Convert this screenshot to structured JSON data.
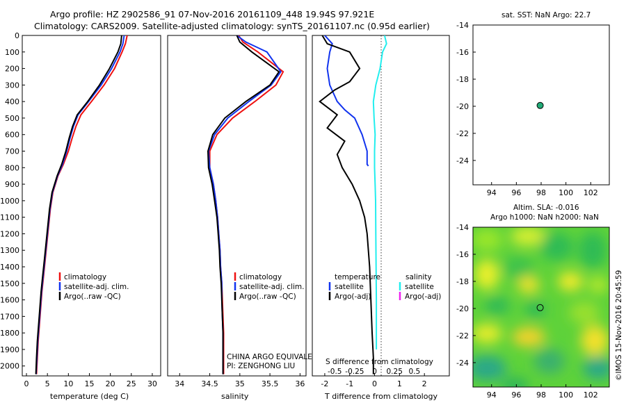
{
  "header": {
    "line1": "Argo profile: HZ 2902586_91 07-Nov-2016 20161109_448 19.94S 97.921E",
    "line2": "Climatology: CARS2009. Satellite-adjusted climatology: synTS_20161107.nc (0.95d earlier)"
  },
  "colors": {
    "climatology": "#ee1111",
    "satellite": "#1133ee",
    "argo": "#000000",
    "salinity_satellite": "#22eeee",
    "salinity_argo": "#ee22ee",
    "float_marker": "#22aa77"
  },
  "chart_data": [
    {
      "type": "line",
      "panel": "temperature",
      "xlabel": "temperature (deg C)",
      "ylabel": "",
      "xlim": [
        -1,
        32
      ],
      "ylim": [
        2060,
        0
      ],
      "xticks": [
        0,
        5,
        10,
        15,
        20,
        25,
        30
      ],
      "yticks": [
        0,
        100,
        200,
        300,
        400,
        500,
        600,
        700,
        800,
        900,
        1000,
        1100,
        1200,
        1300,
        1400,
        1500,
        1600,
        1700,
        1800,
        1900,
        2000
      ],
      "legend": [
        "climatology",
        "satellite-adj. clim.",
        "Argo(..raw -QC)"
      ],
      "series": [
        {
          "name": "climatology",
          "color": "#ee1111",
          "x": [
            24.0,
            23.6,
            22.8,
            21.0,
            18.5,
            15.5,
            13.0,
            11.8,
            10.9,
            10.0,
            8.8,
            7.5,
            6.3,
            5.7,
            5.3,
            4.9,
            4.5,
            4.1,
            3.7,
            3.4,
            3.1,
            2.8,
            2.6,
            2.4
          ],
          "y": [
            0,
            50,
            100,
            200,
            300,
            400,
            480,
            550,
            620,
            700,
            780,
            850,
            950,
            1050,
            1150,
            1250,
            1350,
            1450,
            1550,
            1650,
            1750,
            1850,
            1950,
            2050
          ]
        },
        {
          "name": "satellite-adj. clim.",
          "color": "#1133ee",
          "x": [
            23.3,
            23.0,
            22.3,
            20.3,
            17.8,
            14.8,
            12.3,
            11.2,
            10.4,
            9.6,
            8.6,
            7.4,
            6.2,
            5.6,
            5.2,
            4.8,
            4.4,
            4.0,
            3.6,
            3.3,
            3.0,
            2.7,
            2.5,
            2.3
          ],
          "y": [
            0,
            50,
            100,
            200,
            300,
            400,
            480,
            550,
            620,
            700,
            780,
            850,
            950,
            1050,
            1150,
            1250,
            1350,
            1450,
            1550,
            1650,
            1750,
            1850,
            1950,
            2050
          ]
        },
        {
          "name": "Argo(..raw -QC)",
          "color": "#000000",
          "x": [
            22.7,
            22.5,
            21.8,
            19.8,
            17.4,
            14.6,
            12.1,
            11.0,
            10.2,
            9.4,
            8.4,
            7.3,
            6.1,
            5.5,
            5.1,
            4.7,
            4.3,
            3.9,
            3.5,
            3.2,
            2.9,
            2.6,
            2.4,
            2.25
          ],
          "y": [
            0,
            50,
            100,
            200,
            300,
            400,
            480,
            550,
            620,
            700,
            780,
            850,
            950,
            1050,
            1150,
            1250,
            1350,
            1450,
            1550,
            1650,
            1750,
            1850,
            1950,
            2050
          ]
        }
      ]
    },
    {
      "type": "line",
      "panel": "salinity",
      "xlabel": "salinity",
      "xlim": [
        33.8,
        36.1
      ],
      "ylim": [
        2060,
        0
      ],
      "xticks": [
        34,
        34.5,
        35,
        35.5,
        36
      ],
      "legend": [
        "climatology",
        "satellite-adj. clim.",
        "Argo(..raw -QC)"
      ],
      "annotation": [
        "CHINA ARGO EQUIVALENT",
        "PI: ZENGHONG LIU"
      ],
      "series": [
        {
          "name": "climatology",
          "color": "#ee1111",
          "x": [
            34.98,
            35.05,
            35.3,
            35.72,
            35.6,
            35.25,
            34.88,
            34.62,
            34.5,
            34.5,
            34.56,
            34.6,
            34.63,
            34.65,
            34.67,
            34.68,
            34.7,
            34.71,
            34.72,
            34.73,
            34.73,
            34.73
          ],
          "y": [
            0,
            40,
            100,
            220,
            300,
            400,
            500,
            600,
            700,
            800,
            900,
            1000,
            1100,
            1200,
            1300,
            1400,
            1500,
            1600,
            1700,
            1800,
            1900,
            2050
          ]
        },
        {
          "name": "satellite-adj. clim.",
          "color": "#1133ee",
          "x": [
            34.95,
            35.1,
            35.45,
            35.68,
            35.52,
            35.15,
            34.8,
            34.58,
            34.48,
            34.5,
            34.56,
            34.6,
            34.63,
            34.65,
            34.67,
            34.68,
            34.7,
            34.7,
            34.71,
            34.72,
            34.72,
            34.72
          ],
          "y": [
            0,
            40,
            100,
            220,
            300,
            400,
            500,
            600,
            700,
            800,
            900,
            1000,
            1100,
            1200,
            1300,
            1400,
            1500,
            1600,
            1700,
            1800,
            1900,
            2050
          ]
        },
        {
          "name": "Argo(..raw -QC)",
          "color": "#000000",
          "x": [
            34.95,
            35.0,
            35.2,
            35.65,
            35.5,
            35.1,
            34.75,
            34.55,
            34.47,
            34.48,
            34.54,
            34.58,
            34.62,
            34.64,
            34.66,
            34.67,
            34.69,
            34.7,
            34.71,
            34.72,
            34.72,
            34.72
          ],
          "y": [
            0,
            40,
            100,
            220,
            300,
            400,
            500,
            600,
            700,
            800,
            900,
            1000,
            1100,
            1200,
            1300,
            1400,
            1500,
            1600,
            1700,
            1800,
            1900,
            2050
          ]
        }
      ]
    },
    {
      "type": "line",
      "panel": "difference",
      "xlabel": "T difference from climatology",
      "xlabel_top": "S difference from climatology",
      "xlim": [
        -2.5,
        3.0
      ],
      "ylim": [
        2060,
        0
      ],
      "xticks": [
        -2,
        -1,
        0,
        1,
        2
      ],
      "xticks_salinity": [
        "-0.5",
        "-0.25",
        "0",
        "0.25",
        "0.5"
      ],
      "legend": {
        "temperature_header": "temperature",
        "salinity_header": "salinity",
        "items": [
          "satellite",
          "Argo(-adj)",
          "satellite",
          "Argo(-adj)"
        ]
      },
      "series": [
        {
          "name": "temperature satellite",
          "color": "#1133ee",
          "x": [
            -2.0,
            -1.7,
            -1.8,
            -1.9,
            -1.8,
            -1.5,
            -1.2,
            -0.8,
            -0.5,
            -0.3,
            -0.3,
            -0.3,
            -0.25
          ],
          "y": [
            0,
            50,
            100,
            200,
            300,
            400,
            450,
            500,
            600,
            700,
            760,
            780,
            790
          ]
        },
        {
          "name": "temperature Argo(-adj)",
          "color": "#000000",
          "x": [
            -2.1,
            -1.9,
            -1.0,
            -0.6,
            -1.0,
            -1.6,
            -2.2,
            -1.5,
            -1.9,
            -1.2,
            -1.5,
            -1.3,
            -0.9,
            -0.6,
            -0.4,
            -0.3,
            -0.25,
            -0.2,
            -0.15,
            -0.1,
            -0.05,
            -0.05
          ],
          "y": [
            0,
            50,
            100,
            200,
            280,
            330,
            400,
            480,
            560,
            640,
            720,
            800,
            900,
            1000,
            1100,
            1200,
            1300,
            1400,
            1600,
            1800,
            1950,
            2050
          ]
        },
        {
          "name": "salinity satellite",
          "color": "#22eeee",
          "x": [
            0.4,
            0.48,
            0.32,
            0.22,
            0.05,
            -0.05,
            -0.02,
            0.02,
            0.0,
            0.0,
            0.02,
            0.04,
            0.05,
            0.06,
            0.07,
            0.07,
            0.07
          ],
          "y": [
            0,
            50,
            100,
            200,
            300,
            400,
            500,
            600,
            700,
            800,
            900,
            1000,
            1200,
            1400,
            1600,
            1800,
            1900
          ]
        }
      ]
    },
    {
      "type": "scatter",
      "panel": "sst-map",
      "title": "sat. SST: NaN Argo: 22.7",
      "xlim": [
        92.5,
        103.5
      ],
      "ylim": [
        -25.8,
        -14
      ],
      "xticks": [
        94,
        96,
        98,
        100,
        102
      ],
      "yticks": [
        -14,
        -16,
        -18,
        -20,
        -22,
        -24
      ],
      "points": [
        {
          "x": 97.92,
          "y": -19.94
        }
      ]
    },
    {
      "type": "heatmap",
      "panel": "sla-map",
      "title_line1": "Altim. SLA: -0.016",
      "title_line2": "Argo h1000: NaN h2000: NaN",
      "xlim": [
        92.5,
        103.5
      ],
      "ylim": [
        -25.8,
        -14
      ],
      "xticks": [
        94,
        96,
        98,
        100,
        102
      ],
      "yticks": [
        -14,
        -16,
        -18,
        -20,
        -22,
        -24
      ],
      "points": [
        {
          "x": 97.92,
          "y": -19.94
        }
      ]
    }
  ],
  "footer": {
    "stamp": "©IMOS 15-Nov-2016 20:45:59"
  }
}
